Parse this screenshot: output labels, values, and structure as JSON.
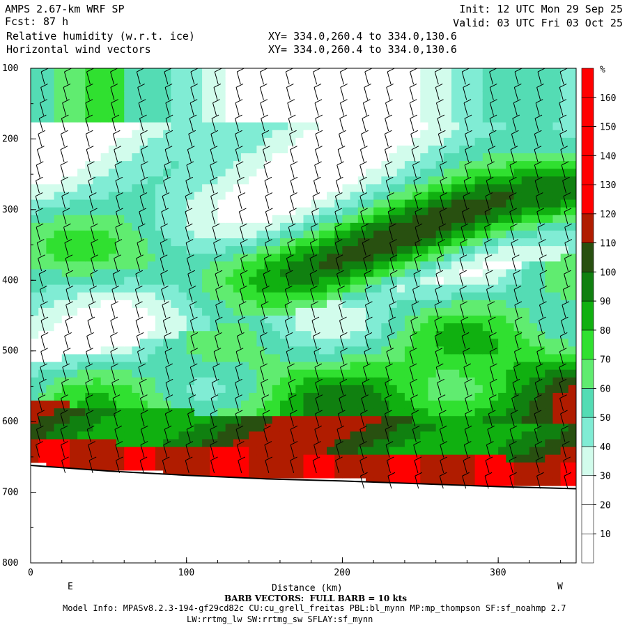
{
  "header": {
    "model": "AMPS 2.67-km WRF SP",
    "fcst_label": "Fcst:",
    "fcst_value": "87 h",
    "field1": "Relative humidity (w.r.t. ice)",
    "field2": "Horizontal wind vectors",
    "xy1": "XY= 334.0,260.4 to 334.0,130.6",
    "xy2": "XY= 334.0,260.4 to 334.0,130.6",
    "init": "Init: 12 UTC Mon 29 Sep 25",
    "valid": "Valid: 03 UTC Fri 03 Oct 25"
  },
  "footer": {
    "barb_note": "BARB VECTORS:  FULL BARB = 10 kts",
    "model_info": "Model Info: MPASv8.2.3-194-gf29cd82c CU:cu_grell_freitas PBL:bl_mynn MP:mp_thompson SF:sf_noahmp 2.7",
    "model_info2": "LW:rrtmg_lw SW:rrtmg_sw SFLAY:sf_mynn"
  },
  "chart_data": {
    "type": "heatmap",
    "xlabel": "Distance (km)",
    "ylabel": "",
    "xlim": [
      0,
      350
    ],
    "ylim": [
      800,
      100
    ],
    "xticks": [
      "0",
      "100",
      "200",
      "300"
    ],
    "yticks": [
      "100",
      "200",
      "300",
      "400",
      "500",
      "600",
      "700",
      "800"
    ],
    "direction_left": "E",
    "direction_right": "W",
    "colorbar": {
      "unit": "%",
      "levels": [
        "10",
        "20",
        "30",
        "40",
        "50",
        "60",
        "70",
        "80",
        "90",
        "100",
        "110",
        "120",
        "130",
        "140",
        "150",
        "160"
      ],
      "colors": [
        "#ffffff",
        "#ffffff",
        "#ffffff",
        "#d2fcec",
        "#80ecd4",
        "#54dcb4",
        "#60ec70",
        "#30e030",
        "#10b010",
        "#108010",
        "#285010",
        "#b01c00",
        "#ff0000",
        "#ff0000",
        "#ff0000",
        "#ff0000",
        "#ff0000"
      ]
    },
    "terrain_pressure": [
      [
        0,
        662
      ],
      [
        50,
        670
      ],
      [
        100,
        676
      ],
      [
        150,
        681
      ],
      [
        200,
        684
      ],
      [
        250,
        688
      ],
      [
        300,
        692
      ],
      [
        350,
        695
      ]
    ]
  }
}
